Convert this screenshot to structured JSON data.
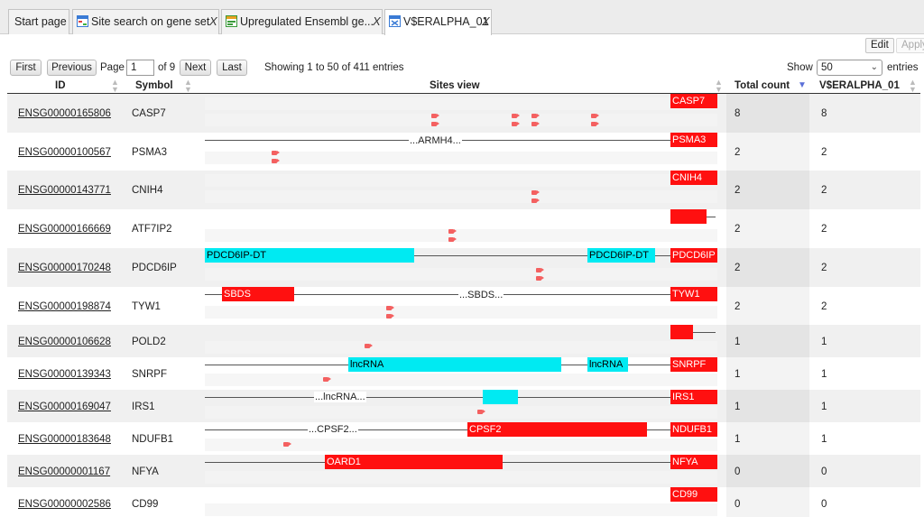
{
  "tabs": [
    {
      "label": "Start page"
    },
    {
      "label": "Site search on gene set"
    },
    {
      "label": "Upregulated Ensembl ge..."
    },
    {
      "label": "V$ERALPHA_01"
    }
  ],
  "close_glyph": "X",
  "toolbar": {
    "edit": "Edit",
    "apply": "Apply"
  },
  "pager": {
    "first": "First",
    "previous": "Previous",
    "page_label": "Page",
    "page_value": "1",
    "of_label": "of 9",
    "next": "Next",
    "last": "Last",
    "showing": "Showing 1 to 50 of 411 entries",
    "show_label": "Show",
    "show_value": "50",
    "entries_label": "entries"
  },
  "columns": {
    "id": "ID",
    "symbol": "Symbol",
    "sites": "Sites view",
    "total": "Total count",
    "matrix": "V$ERALPHA_01"
  },
  "rows": [
    {
      "id": "ENSG00000165806",
      "symbol": "CASP7",
      "total": "8",
      "matrix": "8"
    },
    {
      "id": "ENSG00000100567",
      "symbol": "PSMA3",
      "total": "2",
      "matrix": "2"
    },
    {
      "id": "ENSG00000143771",
      "symbol": "CNIH4",
      "total": "2",
      "matrix": "2"
    },
    {
      "id": "ENSG00000166669",
      "symbol": "ATF7IP2",
      "total": "2",
      "matrix": "2"
    },
    {
      "id": "ENSG00000170248",
      "symbol": "PDCD6IP",
      "total": "2",
      "matrix": "2"
    },
    {
      "id": "ENSG00000198874",
      "symbol": "TYW1",
      "total": "2",
      "matrix": "2"
    },
    {
      "id": "ENSG00000106628",
      "symbol": "POLD2",
      "total": "1",
      "matrix": "1"
    },
    {
      "id": "ENSG00000139343",
      "symbol": "SNRPF",
      "total": "1",
      "matrix": "1"
    },
    {
      "id": "ENSG00000169047",
      "symbol": "IRS1",
      "total": "1",
      "matrix": "1"
    },
    {
      "id": "ENSG00000183648",
      "symbol": "NDUFB1",
      "total": "1",
      "matrix": "1"
    },
    {
      "id": "ENSG00000001167",
      "symbol": "NFYA",
      "total": "0",
      "matrix": "0"
    },
    {
      "id": "ENSG00000002586",
      "symbol": "CD99",
      "total": "0",
      "matrix": "0"
    }
  ],
  "sites_view": {
    "r0": {
      "gene": "CASP7"
    },
    "r1": {
      "neighbor": "...ARMH4...",
      "gene": "PSMA3"
    },
    "r2": {
      "gene": "CNIH4"
    },
    "r4": {
      "left": "PDCD6IP-DT",
      "right": "PDCD6IP-DT",
      "gene": "PDCD6IP"
    },
    "r5": {
      "left": "SBDS",
      "neighbor": "...SBDS...",
      "gene": "TYW1"
    },
    "r7": {
      "left": "lncRNA",
      "right": "lncRNA",
      "gene": "SNRPF"
    },
    "r8": {
      "neighbor": "...lncRNA...",
      "gene": "IRS1"
    },
    "r9": {
      "neighbor": "...CPSF2...",
      "mid": "CPSF2",
      "gene": "NDUFB1"
    },
    "r10": {
      "mid": "OARD1",
      "gene": "NFYA"
    },
    "r11": {
      "gene": "CD99"
    }
  },
  "colors": {
    "gene_box": "#ff1010",
    "neighbor_box": "#00eaf2",
    "site": "#f46060",
    "sort_arrow": "#5b6fd8"
  }
}
